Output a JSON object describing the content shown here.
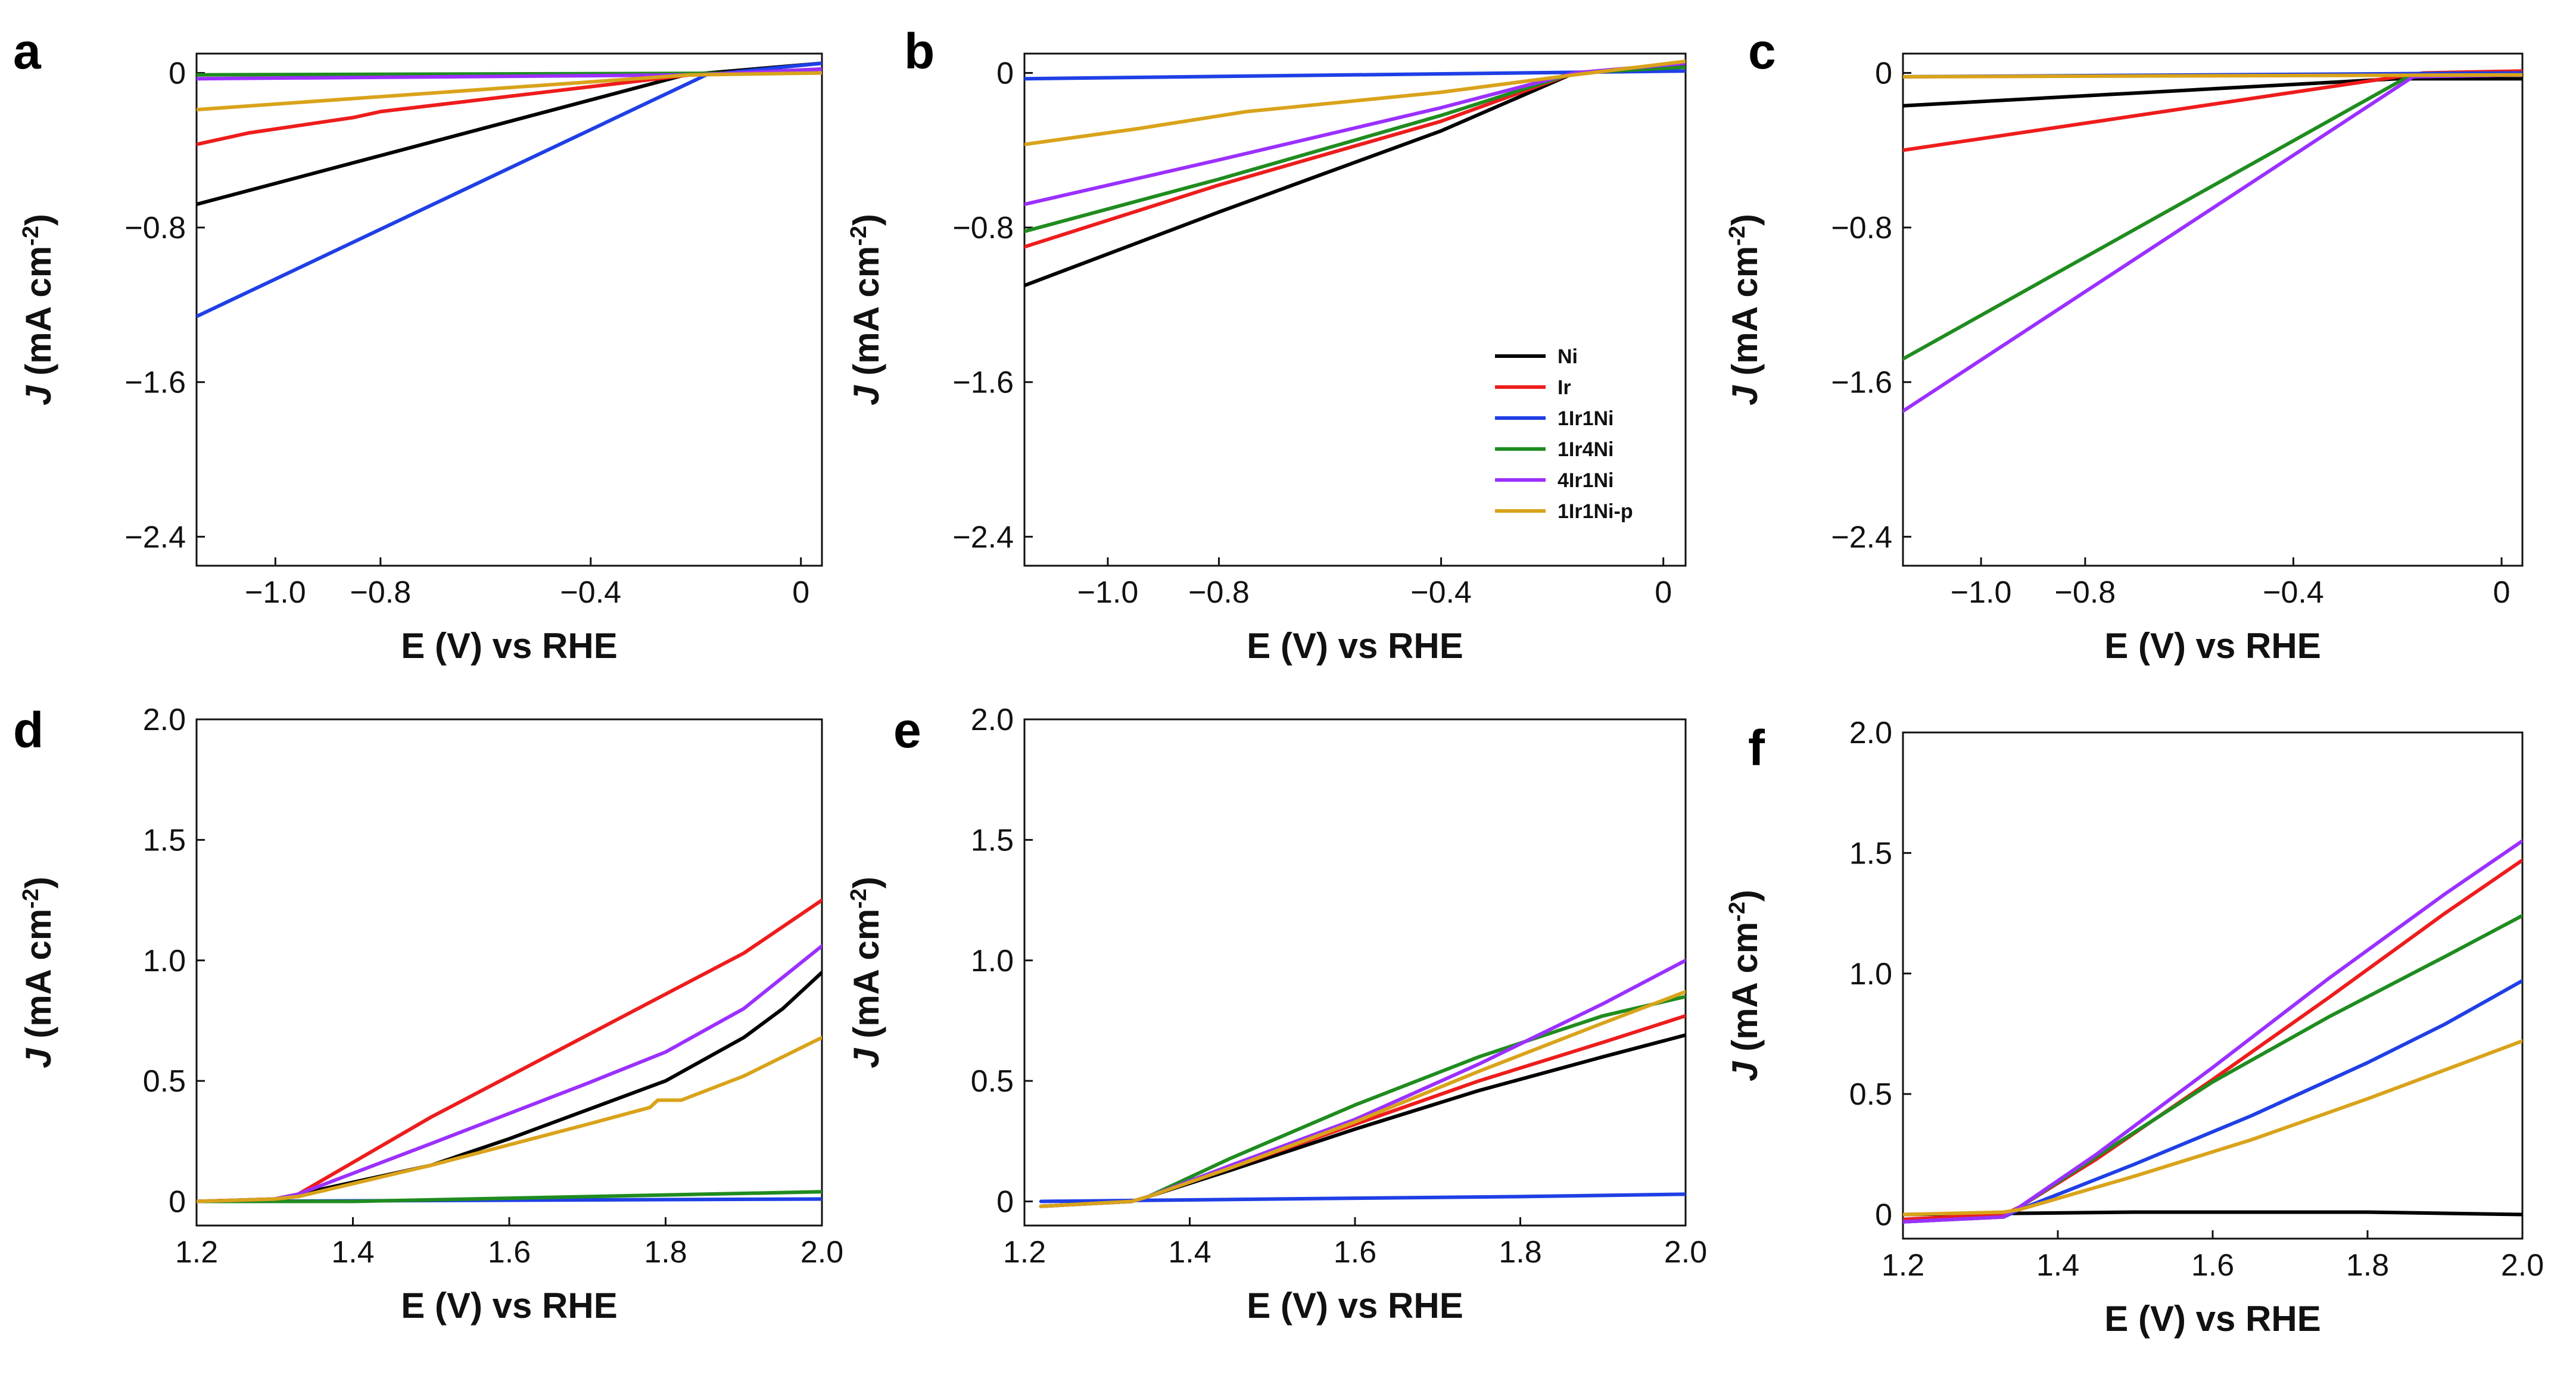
{
  "series_colors": {
    "Ni": "#000000",
    "Ir": "#ee1c1c",
    "1Ir1Ni": "#1f3fe6",
    "1Ir4Ni": "#1f8c1f",
    "4Ir1Ni": "#9b30ff",
    "1Ir1Ni-p": "#d9a31a"
  },
  "legend": {
    "entries": [
      "Ni",
      "Ir",
      "1Ir1Ni",
      "1Ir4Ni",
      "4Ir1Ni",
      "1Ir1Ni-p"
    ]
  },
  "chart_data": [
    {
      "panel": "a",
      "type": "line",
      "xlabel": "E (V) vs RHE",
      "ylabel_italic": "J",
      "ylabel_rest": " (mA cm",
      "ylabel_sup": "-2",
      "ylabel_close": ")",
      "xlim": [
        -1.15,
        0.04
      ],
      "ylim": [
        -2.55,
        0.1
      ],
      "xticks": [
        {
          "v": -1.0,
          "t": "−1.0"
        },
        {
          "v": -0.8,
          "t": "−0.8"
        },
        {
          "v": -0.4,
          "t": "−0.4"
        },
        {
          "v": 0,
          "t": "0"
        }
      ],
      "yticks": [
        {
          "v": 0,
          "t": "0"
        },
        {
          "v": -0.8,
          "t": "−0.8"
        },
        {
          "v": -1.6,
          "t": "−1.6"
        },
        {
          "v": -2.4,
          "t": "−2.4"
        }
      ],
      "series": [
        {
          "name": "Ni",
          "x": [
            -1.15,
            -0.22,
            0.04
          ],
          "y": [
            -0.68,
            -0.01,
            0.05
          ]
        },
        {
          "name": "Ir",
          "x": [
            -1.15,
            -1.05,
            -0.85,
            -0.8,
            -0.21,
            0.04
          ],
          "y": [
            -0.37,
            -0.31,
            -0.23,
            -0.2,
            -0.01,
            0.02
          ]
        },
        {
          "name": "1Ir1Ni",
          "x": [
            -1.15,
            -0.18,
            0.04
          ],
          "y": [
            -1.26,
            -0.01,
            0.05
          ]
        },
        {
          "name": "1Ir4Ni",
          "x": [
            -1.15,
            0.04
          ],
          "y": [
            -0.01,
            0.0
          ]
        },
        {
          "name": "4Ir1Ni",
          "x": [
            -1.15,
            -0.2,
            0.04
          ],
          "y": [
            -0.03,
            -0.01,
            0.02
          ]
        },
        {
          "name": "1Ir1Ni-p",
          "x": [
            -1.15,
            -0.21,
            0.04
          ],
          "y": [
            -0.19,
            -0.01,
            0.0
          ]
        }
      ]
    },
    {
      "panel": "b",
      "type": "line",
      "xlabel": "E (V) vs RHE",
      "ylabel_italic": "J",
      "ylabel_rest": " (mA cm",
      "ylabel_sup": "-2",
      "ylabel_close": ")",
      "xlim": [
        -1.15,
        0.04
      ],
      "ylim": [
        -2.55,
        0.1
      ],
      "xticks": [
        {
          "v": -1.0,
          "t": "−1.0"
        },
        {
          "v": -0.8,
          "t": "−0.8"
        },
        {
          "v": -0.4,
          "t": "−0.4"
        },
        {
          "v": 0,
          "t": "0"
        }
      ],
      "yticks": [
        {
          "v": 0,
          "t": "0"
        },
        {
          "v": -0.8,
          "t": "−0.8"
        },
        {
          "v": -1.6,
          "t": "−1.6"
        },
        {
          "v": -2.4,
          "t": "−2.4"
        }
      ],
      "series": [
        {
          "name": "Ni",
          "x": [
            -1.15,
            -0.8,
            -0.4,
            -0.16,
            0.04
          ],
          "y": [
            -1.1,
            -0.72,
            -0.3,
            0.0,
            0.04
          ]
        },
        {
          "name": "Ir",
          "x": [
            -1.15,
            -0.8,
            -0.4,
            -0.16,
            0.04
          ],
          "y": [
            -0.9,
            -0.58,
            -0.25,
            0.0,
            0.05
          ]
        },
        {
          "name": "1Ir1Ni",
          "x": [
            -1.15,
            0.04
          ],
          "y": [
            -0.03,
            0.01
          ]
        },
        {
          "name": "1Ir4Ni",
          "x": [
            -1.15,
            -0.8,
            -0.4,
            -0.16,
            0.04
          ],
          "y": [
            -0.82,
            -0.55,
            -0.22,
            0.0,
            0.03
          ]
        },
        {
          "name": "4Ir1Ni",
          "x": [
            -1.15,
            -0.8,
            -0.4,
            -0.16,
            0.04
          ],
          "y": [
            -0.68,
            -0.45,
            -0.18,
            0.0,
            0.05
          ]
        },
        {
          "name": "1Ir1Ni-p",
          "x": [
            -1.15,
            -0.95,
            -0.75,
            -0.4,
            -0.16,
            0.04
          ],
          "y": [
            -0.37,
            -0.29,
            -0.2,
            -0.1,
            -0.01,
            0.06
          ]
        }
      ]
    },
    {
      "panel": "c",
      "type": "line",
      "xlabel": "E (V) vs RHE",
      "ylabel_italic": "J",
      "ylabel_rest": " (mA cm",
      "ylabel_sup": "-2",
      "ylabel_close": ")",
      "xlim": [
        -1.15,
        0.04
      ],
      "ylim": [
        -2.55,
        0.1
      ],
      "xticks": [
        {
          "v": -1.0,
          "t": "−1.0"
        },
        {
          "v": -0.8,
          "t": "−0.8"
        },
        {
          "v": -0.4,
          "t": "−0.4"
        },
        {
          "v": 0,
          "t": "0"
        }
      ],
      "yticks": [
        {
          "v": 0,
          "t": "0"
        },
        {
          "v": -0.8,
          "t": "−0.8"
        },
        {
          "v": -1.6,
          "t": "−1.6"
        },
        {
          "v": -2.4,
          "t": "−2.4"
        }
      ],
      "series": [
        {
          "name": "Ni",
          "x": [
            -1.15,
            -0.2,
            0.04
          ],
          "y": [
            -0.17,
            -0.03,
            -0.03
          ]
        },
        {
          "name": "Ir",
          "x": [
            -1.15,
            -0.15,
            0.04
          ],
          "y": [
            -0.4,
            0.0,
            0.01
          ]
        },
        {
          "name": "1Ir1Ni",
          "x": [
            -1.15,
            0.04
          ],
          "y": [
            -0.02,
            0.0
          ]
        },
        {
          "name": "1Ir4Ni",
          "x": [
            -1.15,
            -0.18,
            0.04
          ],
          "y": [
            -1.48,
            -0.02,
            -0.01
          ]
        },
        {
          "name": "4Ir1Ni",
          "x": [
            -1.15,
            -0.17,
            0.04
          ],
          "y": [
            -1.75,
            -0.02,
            -0.01
          ]
        },
        {
          "name": "1Ir1Ni-p",
          "x": [
            -1.15,
            0.04
          ],
          "y": [
            -0.02,
            -0.01
          ]
        }
      ]
    },
    {
      "panel": "d",
      "type": "line",
      "xlabel": "E (V) vs RHE",
      "ylabel_italic": "J",
      "ylabel_rest": " (mA cm",
      "ylabel_sup": "-2",
      "ylabel_close": ")",
      "xlim": [
        1.2,
        2.0
      ],
      "ylim": [
        -0.1,
        2.0
      ],
      "xticks": [
        {
          "v": 1.2,
          "t": "1.2"
        },
        {
          "v": 1.4,
          "t": "1.4"
        },
        {
          "v": 1.6,
          "t": "1.6"
        },
        {
          "v": 1.8,
          "t": "1.8"
        },
        {
          "v": 2.0,
          "t": "2.0"
        }
      ],
      "yticks": [
        {
          "v": 0,
          "t": "0"
        },
        {
          "v": 0.5,
          "t": "0.5"
        },
        {
          "v": 1.0,
          "t": "1.0"
        },
        {
          "v": 1.5,
          "t": "1.5"
        },
        {
          "v": 2.0,
          "t": "2.0"
        }
      ],
      "series": [
        {
          "name": "Ni",
          "x": [
            1.2,
            1.3,
            1.33,
            1.5,
            1.6,
            1.7,
            1.8,
            1.9,
            1.95,
            2.0
          ],
          "y": [
            0.0,
            0.01,
            0.03,
            0.15,
            0.26,
            0.38,
            0.5,
            0.68,
            0.8,
            0.95
          ]
        },
        {
          "name": "Ir",
          "x": [
            1.2,
            1.3,
            1.33,
            1.5,
            1.7,
            1.9,
            2.0
          ],
          "y": [
            0.0,
            0.01,
            0.03,
            0.35,
            0.69,
            1.03,
            1.25
          ]
        },
        {
          "name": "1Ir1Ni",
          "x": [
            1.2,
            2.0
          ],
          "y": [
            0.0,
            0.01
          ]
        },
        {
          "name": "1Ir4Ni",
          "x": [
            1.2,
            1.4,
            1.7,
            2.0
          ],
          "y": [
            0.0,
            0.0,
            0.02,
            0.04
          ]
        },
        {
          "name": "4Ir1Ni",
          "x": [
            1.2,
            1.3,
            1.33,
            1.5,
            1.7,
            1.8,
            1.9,
            2.0
          ],
          "y": [
            0.0,
            0.01,
            0.03,
            0.24,
            0.49,
            0.62,
            0.8,
            1.06
          ]
        },
        {
          "name": "1Ir1Ni-p",
          "x": [
            1.2,
            1.3,
            1.33,
            1.5,
            1.7,
            1.78,
            1.79,
            1.82,
            1.9,
            2.0
          ],
          "y": [
            0.0,
            0.01,
            0.02,
            0.15,
            0.32,
            0.39,
            0.42,
            0.42,
            0.52,
            0.68
          ]
        }
      ]
    },
    {
      "panel": "e",
      "type": "line",
      "xlabel": "E (V) vs RHE",
      "ylabel_italic": "J",
      "ylabel_rest": " (mA cm",
      "ylabel_sup": "-2",
      "ylabel_close": ")",
      "xlim": [
        1.2,
        2.0
      ],
      "ylim": [
        -0.1,
        2.0
      ],
      "xticks": [
        {
          "v": 1.2,
          "t": "1.2"
        },
        {
          "v": 1.4,
          "t": "1.4"
        },
        {
          "v": 1.6,
          "t": "1.6"
        },
        {
          "v": 1.8,
          "t": "1.8"
        },
        {
          "v": 2.0,
          "t": "2.0"
        }
      ],
      "yticks": [
        {
          "v": 0,
          "t": "0"
        },
        {
          "v": 0.5,
          "t": "0.5"
        },
        {
          "v": 1.0,
          "t": "1.0"
        },
        {
          "v": 1.5,
          "t": "1.5"
        },
        {
          "v": 2.0,
          "t": "2.0"
        }
      ],
      "series": [
        {
          "name": "Ni",
          "x": [
            1.22,
            1.33,
            1.35,
            1.45,
            1.6,
            1.75,
            1.9,
            2.0
          ],
          "y": [
            -0.02,
            0.0,
            0.02,
            0.13,
            0.3,
            0.46,
            0.6,
            0.69
          ]
        },
        {
          "name": "Ir",
          "x": [
            1.22,
            1.33,
            1.35,
            1.45,
            1.6,
            1.75,
            1.9,
            2.0
          ],
          "y": [
            -0.02,
            0.0,
            0.02,
            0.14,
            0.32,
            0.5,
            0.66,
            0.77
          ]
        },
        {
          "name": "1Ir1Ni",
          "x": [
            1.22,
            1.5,
            1.8,
            2.0
          ],
          "y": [
            0.0,
            0.01,
            0.02,
            0.03
          ]
        },
        {
          "name": "1Ir4Ni",
          "x": [
            1.22,
            1.33,
            1.35,
            1.45,
            1.6,
            1.75,
            1.9,
            2.0
          ],
          "y": [
            -0.02,
            0.0,
            0.02,
            0.18,
            0.4,
            0.6,
            0.77,
            0.85
          ]
        },
        {
          "name": "4Ir1Ni",
          "x": [
            1.22,
            1.33,
            1.35,
            1.45,
            1.6,
            1.75,
            1.9,
            2.0
          ],
          "y": [
            -0.02,
            0.0,
            0.02,
            0.15,
            0.34,
            0.57,
            0.82,
            1.0
          ]
        },
        {
          "name": "1Ir1Ni-p",
          "x": [
            1.22,
            1.33,
            1.35,
            1.45,
            1.6,
            1.75,
            1.9,
            2.0
          ],
          "y": [
            -0.02,
            0.0,
            0.02,
            0.14,
            0.33,
            0.54,
            0.74,
            0.87
          ]
        }
      ]
    },
    {
      "panel": "f",
      "type": "line",
      "xlabel": "E (V) vs RHE",
      "ylabel_italic": "J",
      "ylabel_rest": " (mA cm",
      "ylabel_sup": "-2",
      "ylabel_close": ")",
      "xlim": [
        1.2,
        2.0
      ],
      "ylim": [
        -0.1,
        2.0
      ],
      "xticks": [
        {
          "v": 1.2,
          "t": "1.2"
        },
        {
          "v": 1.4,
          "t": "1.4"
        },
        {
          "v": 1.6,
          "t": "1.6"
        },
        {
          "v": 1.8,
          "t": "1.8"
        },
        {
          "v": 2.0,
          "t": "2.0"
        }
      ],
      "yticks": [
        {
          "v": 0,
          "t": "0"
        },
        {
          "v": 0.5,
          "t": "0.5"
        },
        {
          "v": 1.0,
          "t": "1.0"
        },
        {
          "v": 1.5,
          "t": "1.5"
        },
        {
          "v": 2.0,
          "t": "2.0"
        }
      ],
      "series": [
        {
          "name": "Ni",
          "x": [
            1.2,
            1.5,
            1.8,
            2.0
          ],
          "y": [
            0.0,
            0.01,
            0.01,
            0.0
          ]
        },
        {
          "name": "Ir",
          "x": [
            1.2,
            1.33,
            1.35,
            1.45,
            1.6,
            1.75,
            1.9,
            2.0
          ],
          "y": [
            -0.02,
            0.0,
            0.03,
            0.23,
            0.56,
            0.9,
            1.25,
            1.47
          ]
        },
        {
          "name": "1Ir1Ni",
          "x": [
            1.2,
            1.33,
            1.35,
            1.5,
            1.65,
            1.8,
            1.9,
            2.0
          ],
          "y": [
            -0.03,
            -0.01,
            0.02,
            0.21,
            0.41,
            0.63,
            0.79,
            0.97
          ]
        },
        {
          "name": "1Ir4Ni",
          "x": [
            1.2,
            1.33,
            1.35,
            1.45,
            1.6,
            1.75,
            1.9,
            2.0
          ],
          "y": [
            -0.03,
            -0.01,
            0.03,
            0.24,
            0.55,
            0.82,
            1.07,
            1.24
          ]
        },
        {
          "name": "4Ir1Ni",
          "x": [
            1.2,
            1.33,
            1.35,
            1.45,
            1.6,
            1.75,
            1.9,
            2.0
          ],
          "y": [
            -0.03,
            -0.01,
            0.03,
            0.25,
            0.61,
            0.98,
            1.33,
            1.55
          ]
        },
        {
          "name": "1Ir1Ni-p",
          "x": [
            1.2,
            1.33,
            1.35,
            1.5,
            1.65,
            1.8,
            1.9,
            2.0
          ],
          "y": [
            0.0,
            0.01,
            0.02,
            0.16,
            0.31,
            0.48,
            0.6,
            0.72
          ]
        }
      ]
    }
  ]
}
